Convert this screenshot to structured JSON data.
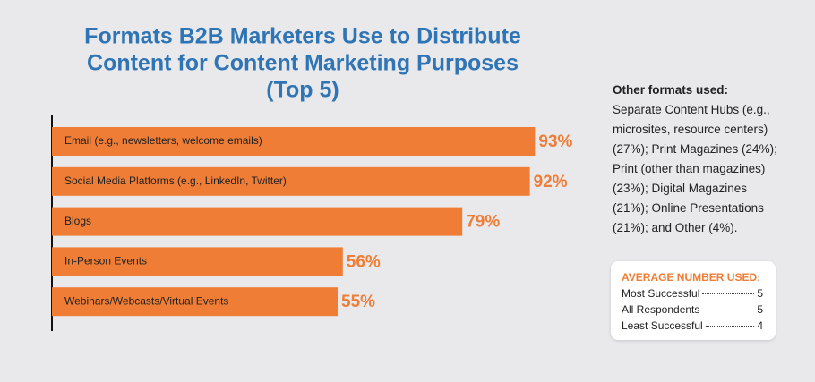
{
  "chart_data": {
    "type": "bar",
    "orientation": "horizontal",
    "title": [
      "Formats B2B Marketers Use to Distribute",
      "Content for Content Marketing Purposes",
      "(Top 5)"
    ],
    "categories": [
      "Email (e.g., newsletters, welcome emails)",
      "Social Media Platforms (e.g., LinkedIn, Twitter)",
      "Blogs",
      "In-Person Events",
      "Webinars/Webcasts/Virtual Events"
    ],
    "values": [
      93,
      92,
      79,
      56,
      55
    ],
    "value_labels": [
      "93%",
      "92%",
      "79%",
      "56%",
      "55%"
    ],
    "color": "#ef7d36",
    "title_color": "#2f74b5",
    "xlim": [
      0,
      100
    ]
  },
  "notes": {
    "heading": "Other formats used:",
    "lines": [
      "Separate Content Hubs (e.g.,",
      "microsites, resource centers)",
      "(27%); Print Magazines (24%);",
      "Print (other than magazines)",
      "(23%); Digital Magazines",
      "(21%); Online Presentations",
      "(21%); and Other (4%)."
    ]
  },
  "average_box": {
    "heading": "AVERAGE NUMBER USED:",
    "rows": [
      {
        "label": "Most Successful",
        "value": 5
      },
      {
        "label": "All Respondents",
        "value": 5
      },
      {
        "label": "Least Successful",
        "value": 4
      }
    ]
  }
}
